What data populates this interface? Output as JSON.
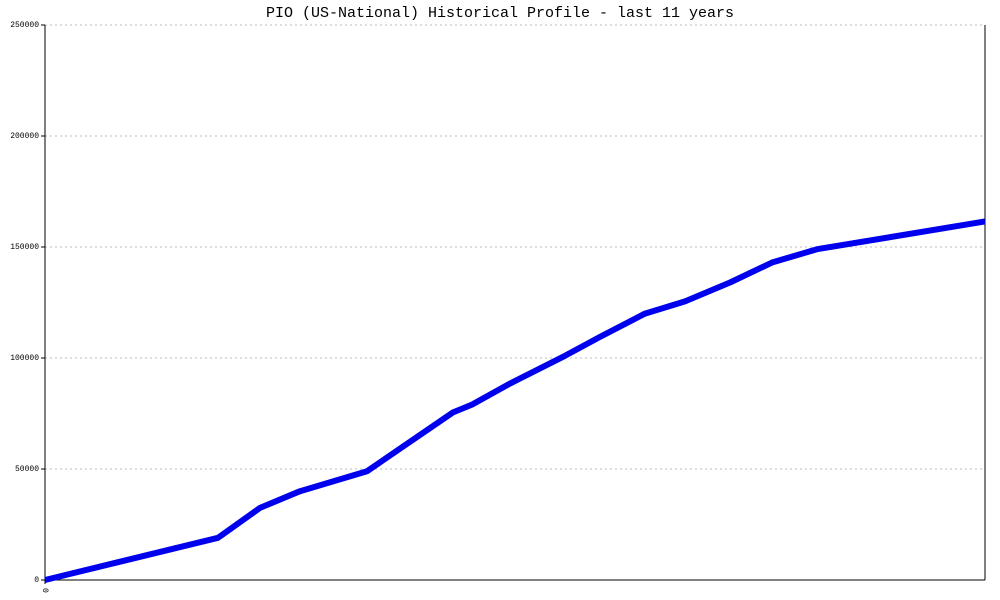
{
  "chart_data": {
    "type": "line",
    "title": "PIO (US-National) Historical Profile - last 11 years",
    "x": [
      0,
      173,
      215,
      255,
      322,
      408,
      427,
      465,
      520,
      555,
      600,
      640,
      685,
      727,
      772,
      940
    ],
    "series": [
      {
        "color": "#0000ee",
        "values": [
          0,
          19000,
          32500,
          40000,
          49000,
          75500,
          79000,
          88500,
          101000,
          109500,
          120000,
          125500,
          134000,
          143000,
          149000,
          161500
        ]
      }
    ],
    "xlim": [
      0,
      940
    ],
    "xticks": [
      0
    ],
    "ylim": [
      0,
      250000
    ],
    "yticks": [
      0,
      50000,
      100000,
      150000,
      200000,
      250000
    ],
    "grid": true
  }
}
